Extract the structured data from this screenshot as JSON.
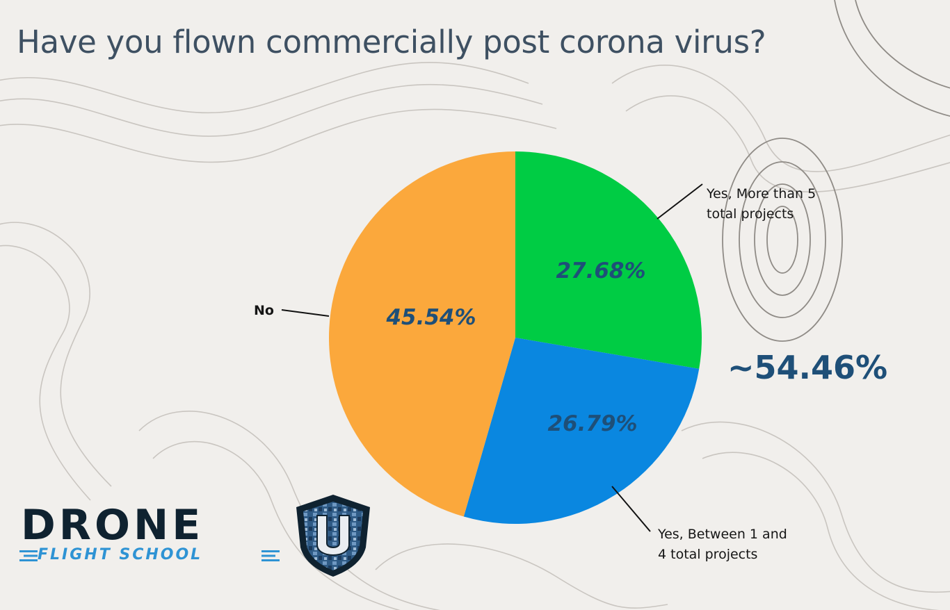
{
  "title": "Have you flown commercially post corona virus?",
  "chart_data": {
    "type": "pie",
    "title": "Have you flown commercially post corona virus?",
    "slices": [
      {
        "label": "Yes, More than 5 total projects",
        "label_lines": [
          "Yes, More than 5",
          "total projects"
        ],
        "value": 27.68,
        "display": "27.68%",
        "color": "#00cc44"
      },
      {
        "label": "Yes, Between 1 and 4 total projects",
        "label_lines": [
          "Yes, Between 1 and",
          "4 total projects"
        ],
        "value": 26.79,
        "display": "26.79%",
        "color": "#0a87e0"
      },
      {
        "label": "No",
        "label_lines": [
          "No"
        ],
        "value": 45.54,
        "display": "45.54%",
        "color": "#fba83c"
      }
    ],
    "annotation": "~54.46%",
    "legend": "none"
  },
  "logo": {
    "name": "DRONE",
    "letter": "U",
    "subtitle": "FLIGHT SCHOOL",
    "colors": {
      "dark": "#0f2230",
      "blue": "#2e93d4"
    }
  }
}
